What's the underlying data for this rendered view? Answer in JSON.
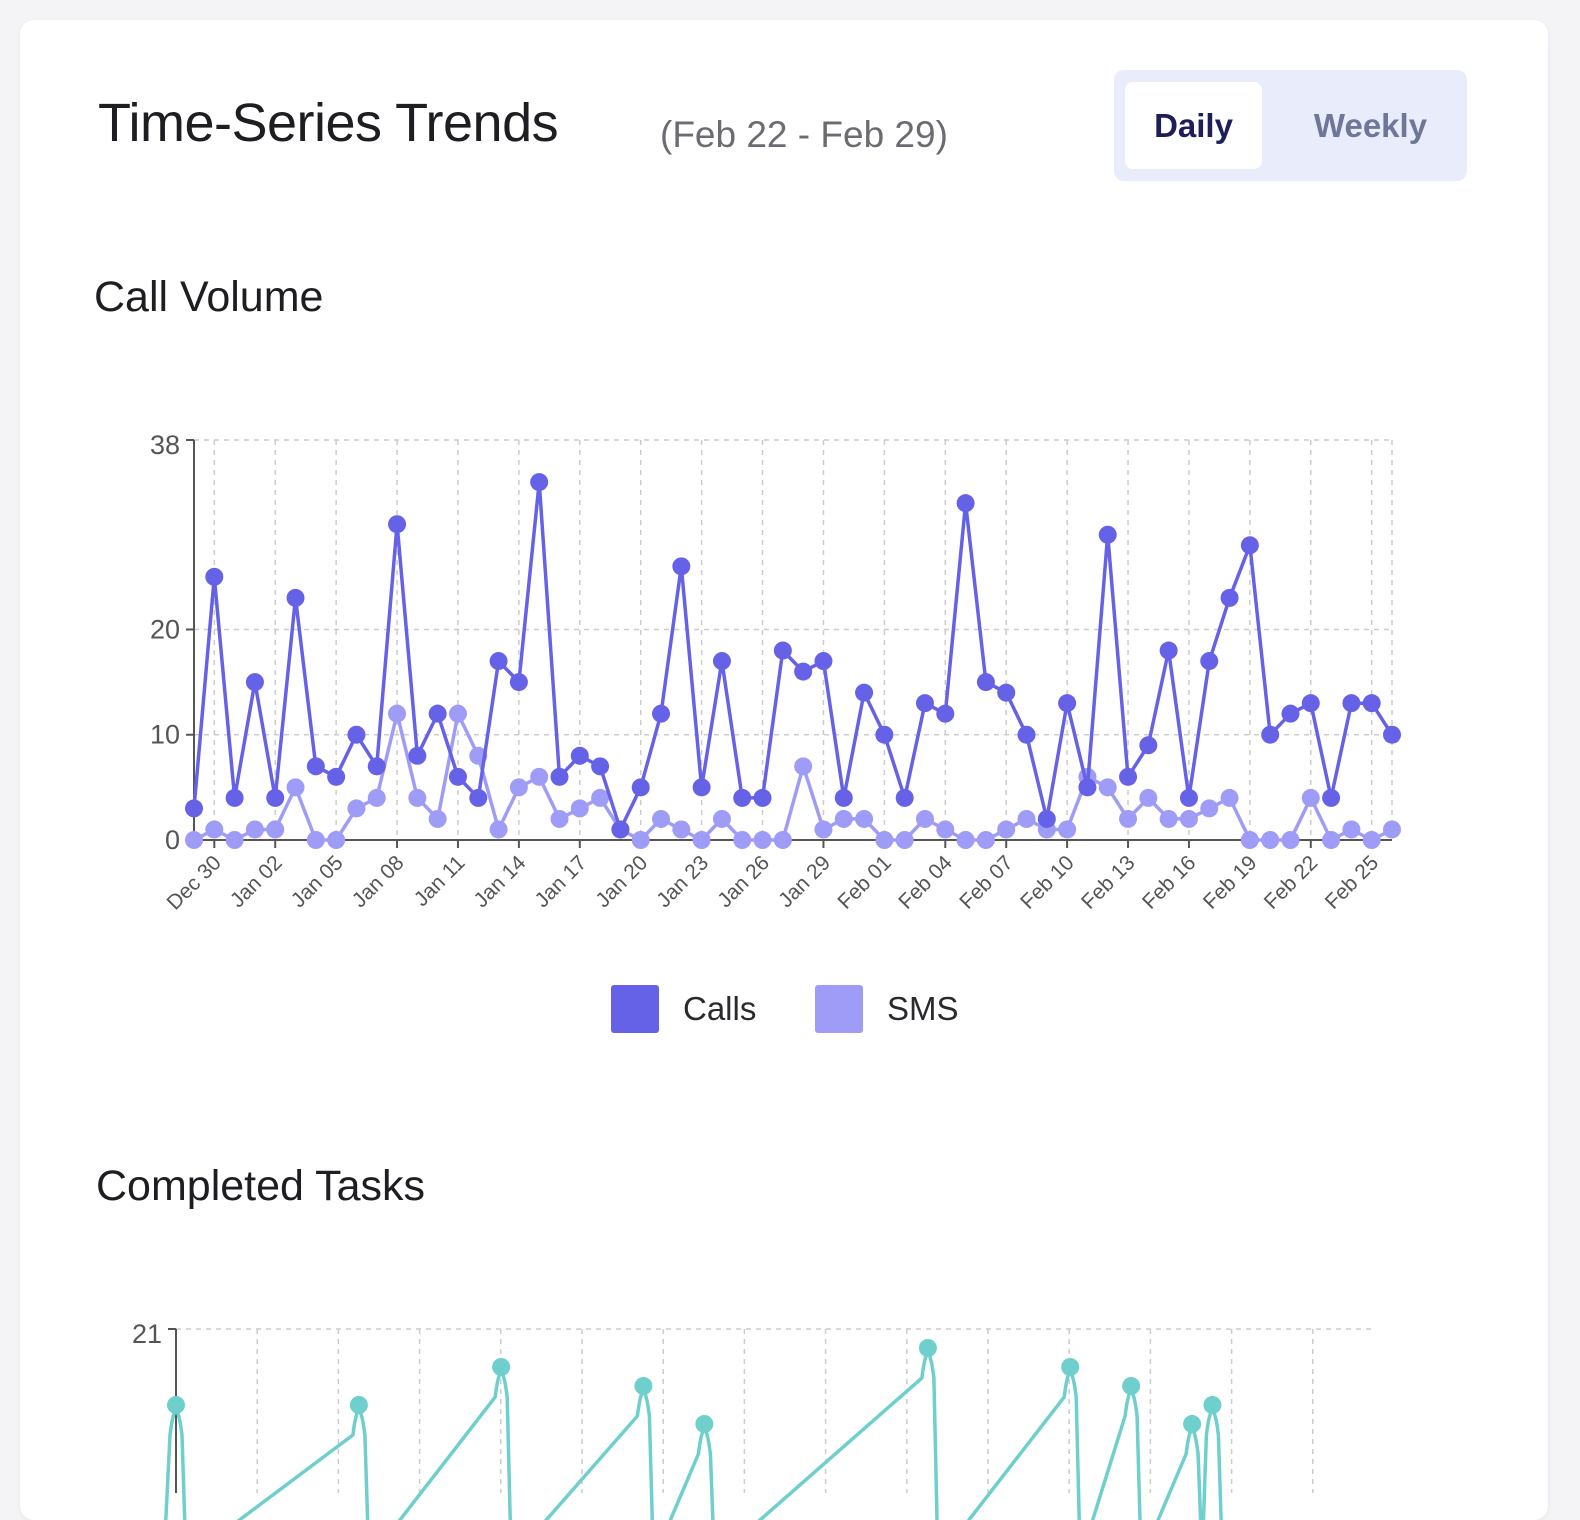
{
  "header": {
    "title": "Time-Series Trends",
    "range": "(Feb 22 - Feb 29)"
  },
  "toggle": {
    "daily": "Daily",
    "weekly": "Weekly",
    "selected": "Daily"
  },
  "sections": {
    "calls_title": "Call Volume",
    "tasks_title": "Completed Tasks"
  },
  "colors": {
    "calls": "#6562e8",
    "sms": "#9f9cf8",
    "tasks": "#6fcfcd",
    "grid": "#cccccc"
  },
  "chart_data": [
    {
      "type": "line",
      "ylim": [
        0,
        38
      ],
      "yticks": [
        0,
        10,
        20,
        38
      ],
      "grid": "on (dashed)",
      "legend_placement": "bottom-center",
      "x_tick_labels": [
        "Dec 30",
        "Jan 02",
        "Jan 05",
        "Jan 08",
        "Jan 11",
        "Jan 14",
        "Jan 17",
        "Jan 20",
        "Jan 23",
        "Jan 26",
        "Jan 29",
        "Feb 01",
        "Feb 04",
        "Feb 07",
        "Feb 10",
        "Feb 13",
        "Feb 16",
        "Feb 19",
        "Feb 22",
        "Feb 25"
      ],
      "x_start": "2023-12-29",
      "series": [
        {
          "name": "Calls",
          "values": [
            3,
            25,
            4,
            15,
            4,
            23,
            7,
            6,
            10,
            7,
            30,
            8,
            12,
            6,
            4,
            17,
            15,
            34,
            6,
            8,
            7,
            1,
            5,
            12,
            26,
            5,
            17,
            4,
            4,
            18,
            16,
            17,
            4,
            14,
            10,
            4,
            13,
            12,
            32,
            15,
            14,
            10,
            2,
            13,
            5,
            29,
            6,
            9,
            18,
            4,
            17,
            23,
            28,
            10,
            12,
            13,
            4,
            13,
            13,
            10
          ]
        },
        {
          "name": "SMS",
          "values": [
            0,
            1,
            0,
            1,
            1,
            5,
            0,
            0,
            3,
            4,
            12,
            4,
            2,
            12,
            8,
            1,
            5,
            6,
            2,
            3,
            4,
            1,
            0,
            2,
            1,
            0,
            2,
            0,
            0,
            0,
            7,
            1,
            2,
            2,
            0,
            0,
            2,
            1,
            0,
            0,
            1,
            2,
            1,
            1,
            6,
            5,
            2,
            4,
            2,
            2,
            3,
            4,
            0,
            0,
            0,
            4,
            0,
            1,
            0,
            1
          ]
        }
      ]
    },
    {
      "type": "line",
      "ylim_top": 21,
      "yticks": [
        21
      ],
      "grid": "on (dashed)",
      "series": [
        {
          "points": [
            [
              0,
              17
            ],
            [
              9,
              17
            ],
            [
              16,
              19
            ],
            [
              23,
              18
            ],
            [
              26,
              16
            ],
            [
              37,
              20
            ],
            [
              44,
              19
            ],
            [
              47,
              18
            ],
            [
              50,
              16
            ],
            [
              51,
              17
            ]
          ]
        }
      ]
    }
  ],
  "legend": {
    "calls": "Calls",
    "sms": "SMS"
  }
}
